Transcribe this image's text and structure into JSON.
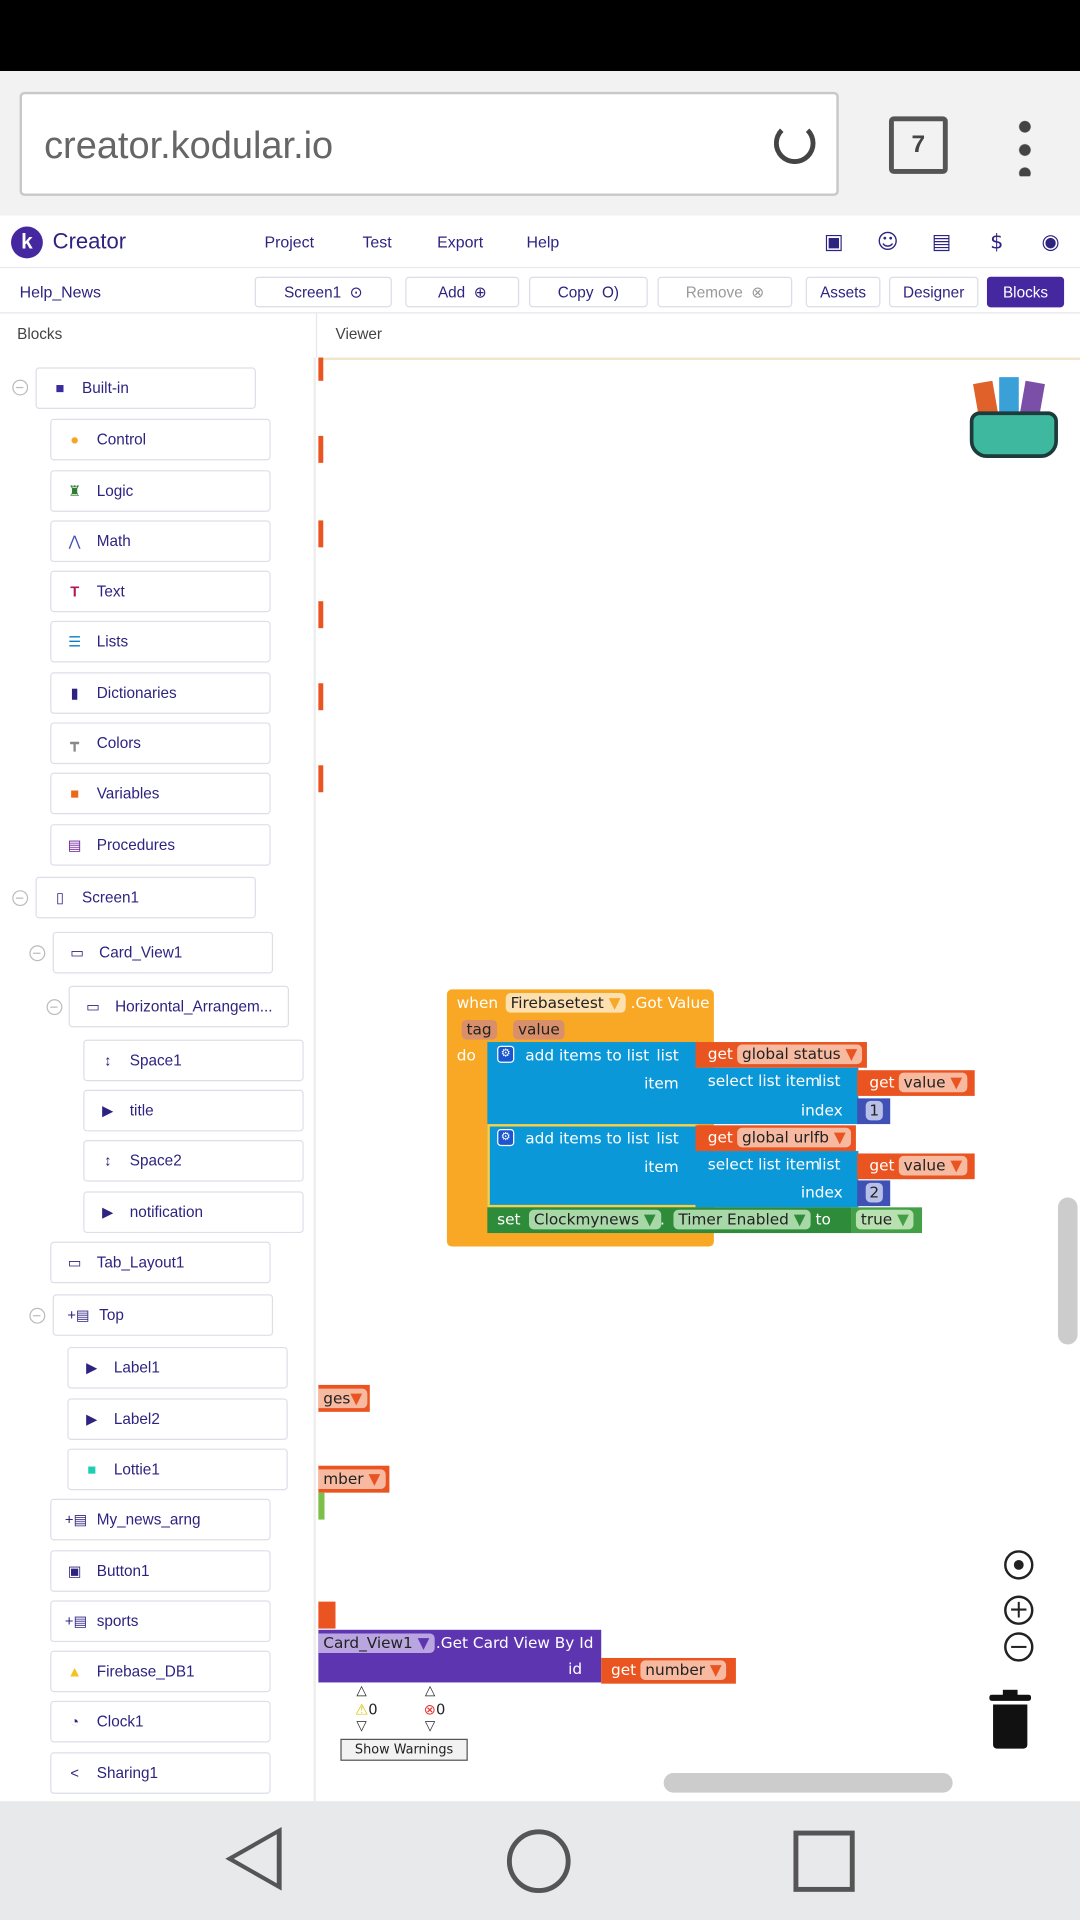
{
  "browser": {
    "url": "creator.kodular.io",
    "tab_count": "7"
  },
  "header": {
    "brand": "Creator",
    "logo_letter": "k",
    "menus": [
      "Project",
      "Test",
      "Export",
      "Help"
    ],
    "icons": [
      "project-folder-icon",
      "community-icon",
      "docs-icon",
      "billing-icon",
      "account-icon"
    ]
  },
  "toolbar": {
    "project_name": "Help_News",
    "screen": "Screen1",
    "add": "Add",
    "copy": "Copy",
    "remove": "Remove",
    "assets": "Assets",
    "designer": "Designer",
    "blocks": "Blocks"
  },
  "panels": {
    "blocks": "Blocks",
    "viewer": "Viewer"
  },
  "tree": {
    "builtin": "Built-in",
    "builtin_items": [
      "Control",
      "Logic",
      "Math",
      "Text",
      "Lists",
      "Dictionaries",
      "Colors",
      "Variables",
      "Procedures"
    ],
    "screen": "Screen1",
    "card_view": "Card_View1",
    "horizontal": "Horizontal_Arrangem...",
    "horizontal_children": [
      "Space1",
      "title",
      "Space2",
      "notification"
    ],
    "tab_layout": "Tab_Layout1",
    "top": "Top",
    "top_children": [
      "Label1",
      "Label2",
      "Lottie1"
    ],
    "rest": [
      "My_news_arng",
      "Button1",
      "sports",
      "Firebase_DB1",
      "Clock1",
      "Sharing1"
    ]
  },
  "blocks": {
    "when": "when",
    "component": "Firebasetest",
    "event": ".Got Value",
    "param_tag": "tag",
    "param_value": "value",
    "do": "do",
    "add_items": "add items to list",
    "list": "list",
    "item": "item",
    "select": "select list item",
    "index": "index",
    "get": "get",
    "var_status": "global status",
    "var_urlfb": "global urlfb",
    "var_value": "value",
    "index1": "1",
    "index2": "2",
    "set": "set",
    "clock": "Clockmynews",
    "dot": ".",
    "prop": "Timer Enabled",
    "to": "to",
    "true": "true",
    "frag1": "ges",
    "frag2": "mber",
    "card": "Card_View1",
    "get_card": ".Get Card View By Id",
    "id": "id",
    "var_number": "number"
  },
  "warnings": {
    "warning_count": "0",
    "error_count": "0",
    "show": "Show Warnings"
  },
  "colors": {
    "accent": "#4527a0",
    "event": "#f9a825",
    "list": "#0b98d8",
    "variable": "#ea5420",
    "math": "#3f51b5",
    "setter": "#2e8b3a",
    "component": "#5e35b1"
  }
}
